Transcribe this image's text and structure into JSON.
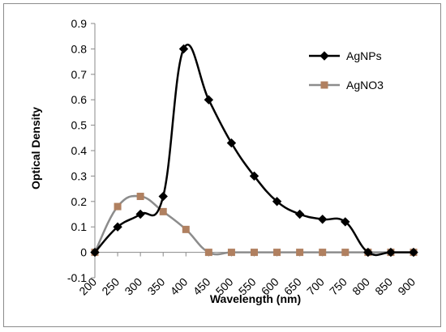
{
  "chart_data": {
    "type": "line",
    "title": "",
    "xlabel": "Wavelength (nm)",
    "ylabel": "Optical Density",
    "x": [
      200,
      250,
      300,
      350,
      400,
      450,
      500,
      550,
      600,
      650,
      700,
      750,
      800,
      850,
      900
    ],
    "xlim": [
      200,
      900
    ],
    "ylim": [
      -0.1,
      0.9
    ],
    "y_ticks": [
      -0.1,
      0,
      0.1,
      0.2,
      0.3,
      0.4,
      0.5,
      0.6,
      0.7,
      0.8,
      0.9
    ],
    "x_tick_labels": [
      "200",
      "250",
      "300",
      "350",
      "400",
      "450",
      "500",
      "550",
      "600",
      "650",
      "700",
      "750",
      "800",
      "850",
      "900"
    ],
    "y_tick_labels": [
      "-0.1",
      "0",
      "0.1",
      "0.2",
      "0.3",
      "0.4",
      "0.5",
      "0.6",
      "0.7",
      "0.8",
      "0.9"
    ],
    "grid": false,
    "legend_position": "top-right",
    "series": [
      {
        "name": "AgNPs",
        "color": "#000000",
        "marker": "diamond",
        "points": [
          {
            "x": 200,
            "y": 0.0
          },
          {
            "x": 250,
            "y": 0.1
          },
          {
            "x": 300,
            "y": 0.15
          },
          {
            "x": 350,
            "y": 0.22
          },
          {
            "x": 395,
            "y": 0.8
          },
          {
            "x": 450,
            "y": 0.6
          },
          {
            "x": 500,
            "y": 0.43
          },
          {
            "x": 550,
            "y": 0.3
          },
          {
            "x": 600,
            "y": 0.2
          },
          {
            "x": 650,
            "y": 0.15
          },
          {
            "x": 700,
            "y": 0.13
          },
          {
            "x": 750,
            "y": 0.12
          },
          {
            "x": 800,
            "y": 0.0
          },
          {
            "x": 850,
            "y": 0.0
          },
          {
            "x": 900,
            "y": 0.0
          }
        ]
      },
      {
        "name": "AgNO3",
        "color": "#8c8c8c",
        "marker_color": "#b08060",
        "marker": "square",
        "points": [
          {
            "x": 200,
            "y": 0.0
          },
          {
            "x": 250,
            "y": 0.18
          },
          {
            "x": 300,
            "y": 0.22
          },
          {
            "x": 350,
            "y": 0.16
          },
          {
            "x": 400,
            "y": 0.09
          },
          {
            "x": 450,
            "y": 0.0
          },
          {
            "x": 500,
            "y": 0.0
          },
          {
            "x": 550,
            "y": 0.0
          },
          {
            "x": 600,
            "y": 0.0
          },
          {
            "x": 650,
            "y": 0.0
          },
          {
            "x": 700,
            "y": 0.0
          },
          {
            "x": 750,
            "y": 0.0
          },
          {
            "x": 800,
            "y": 0.0
          },
          {
            "x": 850,
            "y": 0.0
          },
          {
            "x": 900,
            "y": 0.0
          }
        ]
      }
    ]
  }
}
